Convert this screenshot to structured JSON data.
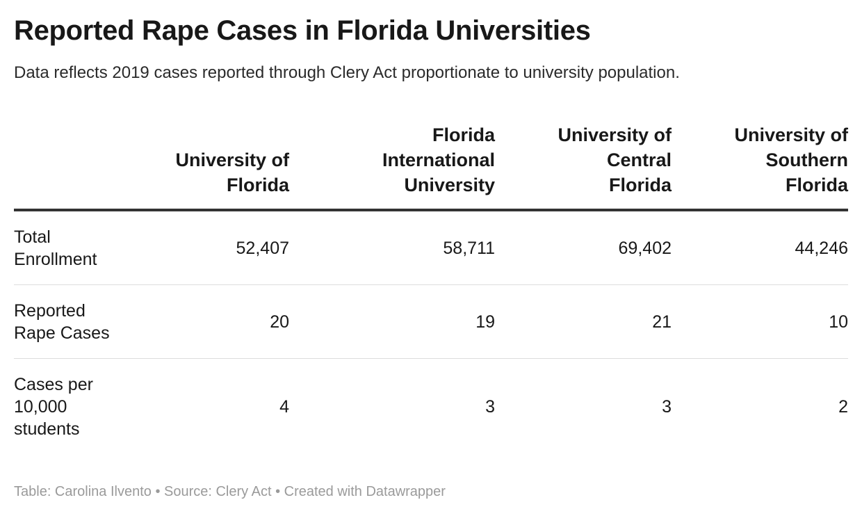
{
  "title": "Reported Rape Cases in Florida Universities",
  "subtitle": "Data reflects 2019 cases reported through Clery Act proportionate to university population.",
  "chart_data": {
    "type": "table",
    "columns": [
      "",
      "University of Florida",
      "Florida International University",
      "University of Central Florida",
      "University of Southern Florida"
    ],
    "rows": [
      {
        "label": "Total Enrollment",
        "values": [
          "52,407",
          "58,711",
          "69,402",
          "44,246"
        ]
      },
      {
        "label": "Reported Rape Cases",
        "values": [
          "20",
          "19",
          "21",
          "10"
        ]
      },
      {
        "label": "Cases per 10,000 students",
        "values": [
          "4",
          "3",
          "3",
          "2"
        ]
      }
    ]
  },
  "footer": "Table: Carolina Ilvento • Source: Clery Act • Created with Datawrapper"
}
